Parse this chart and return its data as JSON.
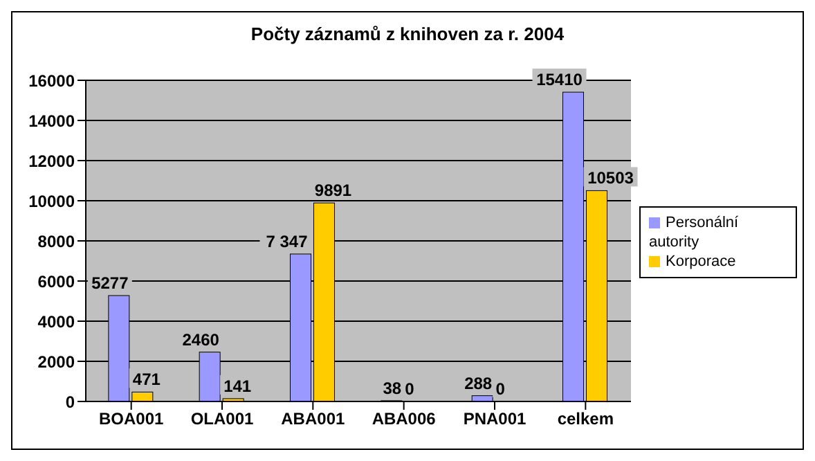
{
  "chart_data": {
    "type": "bar",
    "title": "Počty záznamů z knihoven za r. 2004",
    "categories": [
      "BOA001",
      "OLA001",
      "ABA001",
      "ABA006",
      "PNA001",
      "celkem"
    ],
    "series": [
      {
        "name": "Personální autority",
        "color": "#9999ff",
        "values": [
          5277,
          2460,
          7347,
          38,
          288,
          15410
        ],
        "value_labels": [
          "5277",
          "2460",
          "7 347",
          "38",
          "288",
          "15410"
        ]
      },
      {
        "name": "Korporace",
        "color": "#ffcc00",
        "values": [
          471,
          141,
          9891,
          0,
          0,
          10503
        ],
        "value_labels": [
          "471",
          "141",
          "9891",
          "0",
          "0",
          "10503"
        ]
      }
    ],
    "ylim": [
      0,
      16000
    ],
    "yticks": [
      0,
      2000,
      4000,
      6000,
      8000,
      10000,
      12000,
      14000,
      16000
    ],
    "grid": "y",
    "legend": "right"
  }
}
